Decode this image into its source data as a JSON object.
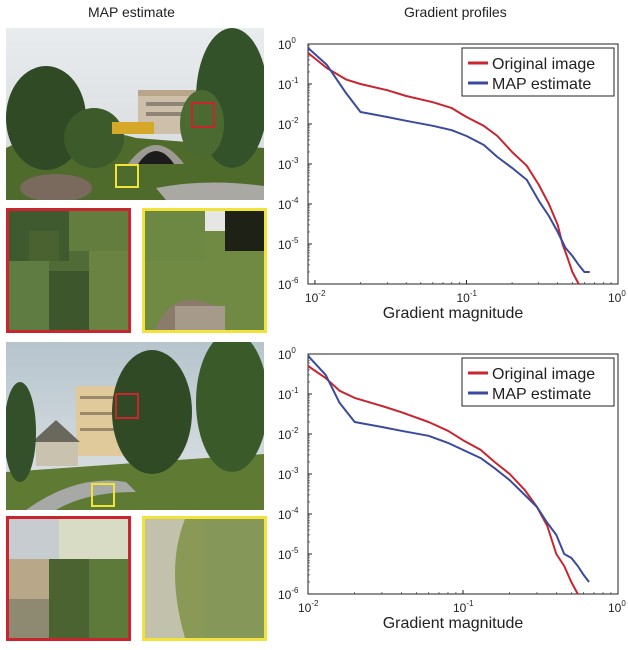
{
  "headers": {
    "left": "MAP estimate",
    "right": "Gradient profiles"
  },
  "colors": {
    "original": "#c8252f",
    "map": "#3a4a9e",
    "crop_red": "#c8252f",
    "crop_yellow": "#f1e33a"
  },
  "chart_data": [
    {
      "type": "line",
      "xscale": "log",
      "yscale": "log",
      "xlim": [
        0.009,
        1
      ],
      "ylim": [
        1e-06,
        1
      ],
      "xlabel": "Gradient magnitude",
      "ylabel": "",
      "xticks": [
        "10",
        "10",
        "10"
      ],
      "xtick_exp": [
        "-2",
        "-1",
        "0"
      ],
      "yticks": [
        "10",
        "10",
        "10",
        "10",
        "10",
        "10",
        "10"
      ],
      "ytick_exp": [
        "0",
        "-1",
        "-2",
        "-3",
        "-4",
        "-5",
        "-6"
      ],
      "legend_position": "top-right",
      "series": [
        {
          "name": "Original image",
          "x": [
            0.009,
            0.012,
            0.016,
            0.02,
            0.03,
            0.04,
            0.06,
            0.08,
            0.1,
            0.13,
            0.16,
            0.2,
            0.25,
            0.3,
            0.35,
            0.4,
            0.43,
            0.46,
            0.5,
            0.55
          ],
          "y": [
            0.6,
            0.25,
            0.13,
            0.1,
            0.07,
            0.05,
            0.035,
            0.025,
            0.015,
            0.009,
            0.005,
            0.002,
            0.0009,
            0.0003,
            0.0001,
            3e-05,
            1e-05,
            5e-06,
            2e-06,
            1e-06
          ]
        },
        {
          "name": "MAP estimate",
          "x": [
            0.009,
            0.012,
            0.016,
            0.02,
            0.03,
            0.04,
            0.06,
            0.08,
            0.1,
            0.13,
            0.16,
            0.2,
            0.25,
            0.3,
            0.35,
            0.4,
            0.45,
            0.5,
            0.55,
            0.6,
            0.65
          ],
          "y": [
            0.8,
            0.3,
            0.06,
            0.02,
            0.015,
            0.012,
            0.009,
            0.007,
            0.005,
            0.003,
            0.0015,
            0.0008,
            0.0004,
            0.00012,
            5e-05,
            2e-05,
            8e-06,
            5e-06,
            3e-06,
            2e-06,
            2e-06
          ]
        }
      ]
    },
    {
      "type": "line",
      "xscale": "log",
      "yscale": "log",
      "xlim": [
        0.01,
        1
      ],
      "ylim": [
        1e-06,
        1
      ],
      "xlabel": "Gradient magnitude",
      "ylabel": "",
      "xticks": [
        "10",
        "10",
        "10"
      ],
      "xtick_exp": [
        "-2",
        "-1",
        "0"
      ],
      "yticks": [
        "10",
        "10",
        "10",
        "10",
        "10",
        "10",
        "10"
      ],
      "ytick_exp": [
        "0",
        "-1",
        "-2",
        "-3",
        "-4",
        "-5",
        "-6"
      ],
      "legend_position": "top-right",
      "series": [
        {
          "name": "Original image",
          "x": [
            0.01,
            0.013,
            0.016,
            0.02,
            0.03,
            0.04,
            0.06,
            0.08,
            0.1,
            0.13,
            0.16,
            0.2,
            0.25,
            0.3,
            0.35,
            0.4,
            0.45,
            0.5,
            0.55
          ],
          "y": [
            0.5,
            0.25,
            0.12,
            0.08,
            0.05,
            0.035,
            0.02,
            0.012,
            0.007,
            0.004,
            0.002,
            0.001,
            0.0004,
            0.00015,
            5e-05,
            1e-05,
            5e-06,
            2e-06,
            1e-06
          ]
        },
        {
          "name": "MAP estimate",
          "x": [
            0.01,
            0.013,
            0.016,
            0.02,
            0.03,
            0.04,
            0.06,
            0.08,
            0.1,
            0.13,
            0.16,
            0.2,
            0.25,
            0.3,
            0.35,
            0.4,
            0.45,
            0.5,
            0.55,
            0.6,
            0.65
          ],
          "y": [
            0.9,
            0.3,
            0.06,
            0.02,
            0.015,
            0.012,
            0.009,
            0.006,
            0.004,
            0.0025,
            0.0014,
            0.0007,
            0.0003,
            0.00015,
            6e-05,
            3e-05,
            1e-05,
            8e-06,
            5e-06,
            3e-06,
            2e-06
          ]
        }
      ]
    }
  ]
}
